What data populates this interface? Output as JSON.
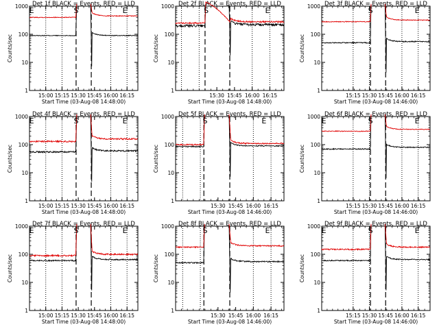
{
  "figure": {
    "colors": {
      "events": "#000000",
      "lld": "#e00000",
      "axes": "#000000",
      "background": "#ffffff"
    },
    "shared": {
      "ylabel": "Counts/sec",
      "y_scale": "log",
      "y_range": [
        1,
        1000
      ],
      "y_ticks": [
        "1",
        "10",
        "100",
        "1000"
      ],
      "segment_markers": {
        "start": "S",
        "end": "E"
      }
    }
  },
  "chart_data": [
    {
      "type": "line",
      "title": "Det 1f BLACK = Events, RED = LLD",
      "xlabel": "Start Time (03-Aug-08 14:48:00)",
      "x_tick_labels": [
        "15:00",
        "15:15",
        "15:30",
        "15:45",
        "16:00",
        "16:15"
      ],
      "x_tick_minutes": [
        15,
        30,
        45,
        60,
        75,
        90
      ],
      "x_range_minutes": [
        0,
        100
      ],
      "gap_minutes": [
        43,
        57
      ],
      "dotted_minutes": [
        15,
        30,
        75,
        90
      ],
      "markers": [
        {
          "label": "E",
          "x_minutes": 2
        },
        {
          "label": "S",
          "x_minutes": 43
        },
        {
          "label": "E",
          "x_minutes": 88
        }
      ],
      "grid": false,
      "legend": "none",
      "series": [
        {
          "name": "Events",
          "color": "#000000",
          "levels": {
            "pre": 90,
            "post": 90
          },
          "noise": 0.03
        },
        {
          "name": "LLD",
          "color": "#e00000",
          "levels": {
            "pre": 400,
            "post": 450
          },
          "noise": 0.03
        }
      ]
    },
    {
      "type": "line",
      "title": "Det 2f BLACK = Events, RED = LLD",
      "xlabel": "Start Time (03-Aug-08 14:48:00)",
      "x_tick_labels": [
        "15:30",
        "15:45",
        "16:00",
        "16:15"
      ],
      "x_tick_minutes": [
        15,
        30,
        45,
        60
      ],
      "x_range_minutes": [
        -20,
        72
      ],
      "gap_minutes": [
        5,
        26
      ],
      "dotted_minutes": [
        -15,
        0,
        45,
        60
      ],
      "markers": [
        {
          "label": "S",
          "x_minutes": 6
        },
        {
          "label": "E",
          "x_minutes": 58
        }
      ],
      "grid": false,
      "legend": "none",
      "series": [
        {
          "name": "Events",
          "color": "#000000",
          "levels": {
            "pre": 200,
            "post": 220
          },
          "noise": 0.1
        },
        {
          "name": "LLD",
          "color": "#e00000",
          "levels": {
            "pre": 250,
            "post": 280
          },
          "noise": 0.06,
          "peak": 1400
        }
      ]
    },
    {
      "type": "line",
      "title": "Det 3f BLACK = Events, RED = LLD",
      "xlabel": "Start Time (03-Aug-08 14:46:00)",
      "x_tick_labels": [
        "15:15",
        "15:30",
        "15:45",
        "16:00",
        "16:15"
      ],
      "x_tick_minutes": [
        29,
        44,
        59,
        74,
        89
      ],
      "x_range_minutes": [
        0,
        100
      ],
      "gap_minutes": [
        45,
        59
      ],
      "dotted_minutes": [
        29,
        44,
        74,
        89
      ],
      "markers": [
        {
          "label": "S",
          "x_minutes": 45
        },
        {
          "label": "E",
          "x_minutes": 88
        }
      ],
      "grid": false,
      "legend": "none",
      "series": [
        {
          "name": "Events",
          "color": "#000000",
          "levels": {
            "pre": 50,
            "post": 55
          },
          "noise": 0.04
        },
        {
          "name": "LLD",
          "color": "#e00000",
          "levels": {
            "pre": 280,
            "post": 320
          },
          "noise": 0.03
        }
      ]
    },
    {
      "type": "line",
      "title": "Det 4f BLACK = Events, RED = LLD",
      "xlabel": "Start Time (03-Aug-08 14:48:00)",
      "x_tick_labels": [
        "15:00",
        "15:15",
        "15:30",
        "15:45",
        "16:00",
        "16:15"
      ],
      "x_tick_minutes": [
        15,
        30,
        45,
        60,
        75,
        90
      ],
      "x_range_minutes": [
        0,
        100
      ],
      "gap_minutes": [
        43,
        57
      ],
      "dotted_minutes": [
        15,
        30,
        75,
        90
      ],
      "markers": [
        {
          "label": "E",
          "x_minutes": 2
        },
        {
          "label": "S",
          "x_minutes": 43
        },
        {
          "label": "E",
          "x_minutes": 88
        }
      ],
      "grid": false,
      "legend": "none",
      "series": [
        {
          "name": "Events",
          "color": "#000000",
          "levels": {
            "pre": 55,
            "post": 60
          },
          "noise": 0.06
        },
        {
          "name": "LLD",
          "color": "#e00000",
          "levels": {
            "pre": 130,
            "post": 160
          },
          "noise": 0.06
        }
      ]
    },
    {
      "type": "line",
      "title": "Det 5f BLACK = Events, RED = LLD",
      "xlabel": "Start Time (03-Aug-08 14:46:00)",
      "x_tick_labels": [
        "15:30",
        "15:45",
        "16:00",
        "16:15"
      ],
      "x_tick_minutes": [
        16,
        31,
        46,
        61
      ],
      "x_range_minutes": [
        -20,
        72
      ],
      "gap_minutes": [
        4,
        26
      ],
      "dotted_minutes": [
        -14,
        1,
        46,
        61
      ],
      "markers": [
        {
          "label": "S",
          "x_minutes": 5
        },
        {
          "label": "E",
          "x_minutes": 55
        }
      ],
      "grid": false,
      "legend": "none",
      "series": [
        {
          "name": "Events",
          "color": "#000000",
          "levels": {
            "pre": 85,
            "post": 90
          },
          "noise": 0.04
        },
        {
          "name": "LLD",
          "color": "#e00000",
          "levels": {
            "pre": 100,
            "post": 110
          },
          "noise": 0.05
        }
      ]
    },
    {
      "type": "line",
      "title": "Det 6f BLACK = Events, RED = LLD",
      "xlabel": "Start Time (03-Aug-08 14:46:00)",
      "x_tick_labels": [
        "15:15",
        "15:30",
        "15:45",
        "16:00",
        "16:15"
      ],
      "x_tick_minutes": [
        29,
        44,
        59,
        74,
        89
      ],
      "x_range_minutes": [
        0,
        100
      ],
      "gap_minutes": [
        45,
        59
      ],
      "dotted_minutes": [
        29,
        44,
        74,
        89
      ],
      "markers": [
        {
          "label": "E",
          "x_minutes": 2
        },
        {
          "label": "S",
          "x_minutes": 45
        },
        {
          "label": "E",
          "x_minutes": 88
        }
      ],
      "grid": false,
      "legend": "none",
      "series": [
        {
          "name": "Events",
          "color": "#000000",
          "levels": {
            "pre": 70,
            "post": 80
          },
          "noise": 0.04
        },
        {
          "name": "LLD",
          "color": "#e00000",
          "levels": {
            "pre": 300,
            "post": 350
          },
          "noise": 0.03
        }
      ]
    },
    {
      "type": "line",
      "title": "Det 7f BLACK = Events, RED = LLD",
      "xlabel": "Start Time (03-Aug-08 14:48:00)",
      "x_tick_labels": [
        "15:00",
        "15:15",
        "15:30",
        "15:45",
        "16:00",
        "16:15"
      ],
      "x_tick_minutes": [
        15,
        30,
        45,
        60,
        75,
        90
      ],
      "x_range_minutes": [
        0,
        100
      ],
      "gap_minutes": [
        43,
        57
      ],
      "dotted_minutes": [
        15,
        30,
        75,
        90
      ],
      "markers": [
        {
          "label": "E",
          "x_minutes": 2
        },
        {
          "label": "S",
          "x_minutes": 43
        },
        {
          "label": "E",
          "x_minutes": 88
        }
      ],
      "grid": false,
      "legend": "none",
      "series": [
        {
          "name": "Events",
          "color": "#000000",
          "levels": {
            "pre": 60,
            "post": 65
          },
          "noise": 0.05
        },
        {
          "name": "LLD",
          "color": "#e00000",
          "levels": {
            "pre": 90,
            "post": 100
          },
          "noise": 0.06
        }
      ]
    },
    {
      "type": "line",
      "title": "Det 8f BLACK = Events, RED = LLD",
      "xlabel": "Start Time (03-Aug-08 14:46:00)",
      "x_tick_labels": [
        "15:30",
        "15:45",
        "16:00",
        "16:15"
      ],
      "x_tick_minutes": [
        16,
        31,
        46,
        61
      ],
      "x_range_minutes": [
        -20,
        72
      ],
      "gap_minutes": [
        4,
        26
      ],
      "dotted_minutes": [
        -14,
        1,
        46,
        61
      ],
      "markers": [
        {
          "label": "S",
          "x_minutes": 5
        },
        {
          "label": "E",
          "x_minutes": 58
        }
      ],
      "grid": false,
      "legend": "none",
      "series": [
        {
          "name": "Events",
          "color": "#000000",
          "levels": {
            "pre": 50,
            "post": 55
          },
          "noise": 0.05
        },
        {
          "name": "LLD",
          "color": "#e00000",
          "levels": {
            "pre": 180,
            "post": 200
          },
          "noise": 0.05
        }
      ]
    },
    {
      "type": "line",
      "title": "Det 9f BLACK = Events, RED = LLD",
      "xlabel": "Start Time (03-Aug-08 14:46:00)",
      "x_tick_labels": [
        "15:15",
        "15:30",
        "15:45",
        "16:00",
        "16:15"
      ],
      "x_tick_minutes": [
        29,
        44,
        59,
        74,
        89
      ],
      "x_range_minutes": [
        0,
        100
      ],
      "gap_minutes": [
        45,
        59
      ],
      "dotted_minutes": [
        29,
        44,
        74,
        89
      ],
      "markers": [
        {
          "label": "E",
          "x_minutes": 2
        },
        {
          "label": "S",
          "x_minutes": 45
        },
        {
          "label": "E",
          "x_minutes": 88
        }
      ],
      "grid": false,
      "legend": "none",
      "series": [
        {
          "name": "Events",
          "color": "#000000",
          "levels": {
            "pre": 60,
            "post": 65
          },
          "noise": 0.04
        },
        {
          "name": "LLD",
          "color": "#e00000",
          "levels": {
            "pre": 150,
            "post": 180
          },
          "noise": 0.05
        }
      ]
    }
  ]
}
